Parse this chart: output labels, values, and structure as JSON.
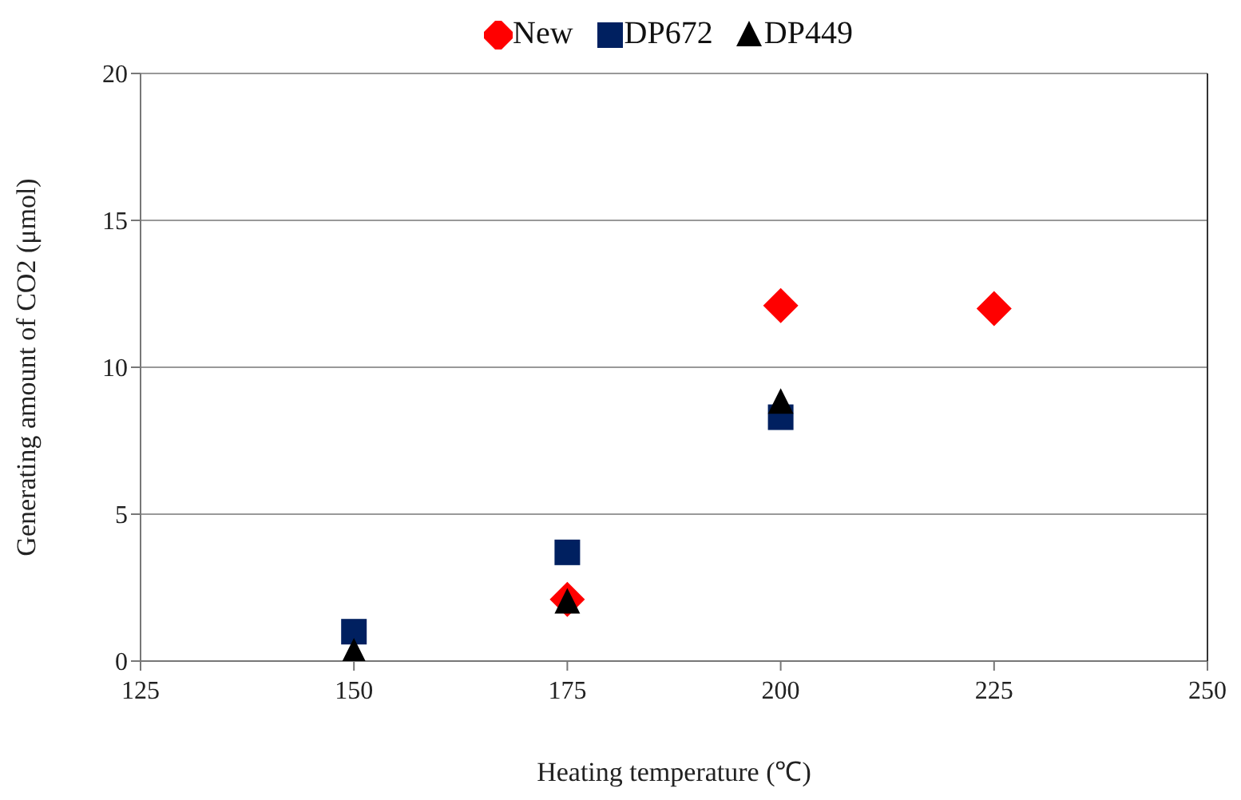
{
  "chart_data": {
    "type": "scatter",
    "xlabel": "Heating temperature (℃)",
    "ylabel": "Generating amount of CO2 (μmol)",
    "x": [
      150,
      175,
      200,
      225
    ],
    "series": [
      {
        "name": "New",
        "color": "#ff0000",
        "marker": "diamond",
        "values": [
          null,
          2.1,
          12.1,
          12.0
        ]
      },
      {
        "name": "DP672",
        "color": "#002060",
        "marker": "square",
        "values": [
          1.0,
          3.7,
          8.3,
          null
        ]
      },
      {
        "name": "DP449",
        "color": "#000000",
        "marker": "triangle",
        "values": [
          0.3,
          2.0,
          8.8,
          null
        ]
      }
    ],
    "xlim": [
      125,
      250
    ],
    "xticks": [
      125,
      150,
      175,
      200,
      225,
      250
    ],
    "ylim": [
      0,
      20
    ],
    "yticks": [
      0,
      5,
      10,
      15,
      20
    ],
    "grid": "y",
    "legend": "top"
  }
}
